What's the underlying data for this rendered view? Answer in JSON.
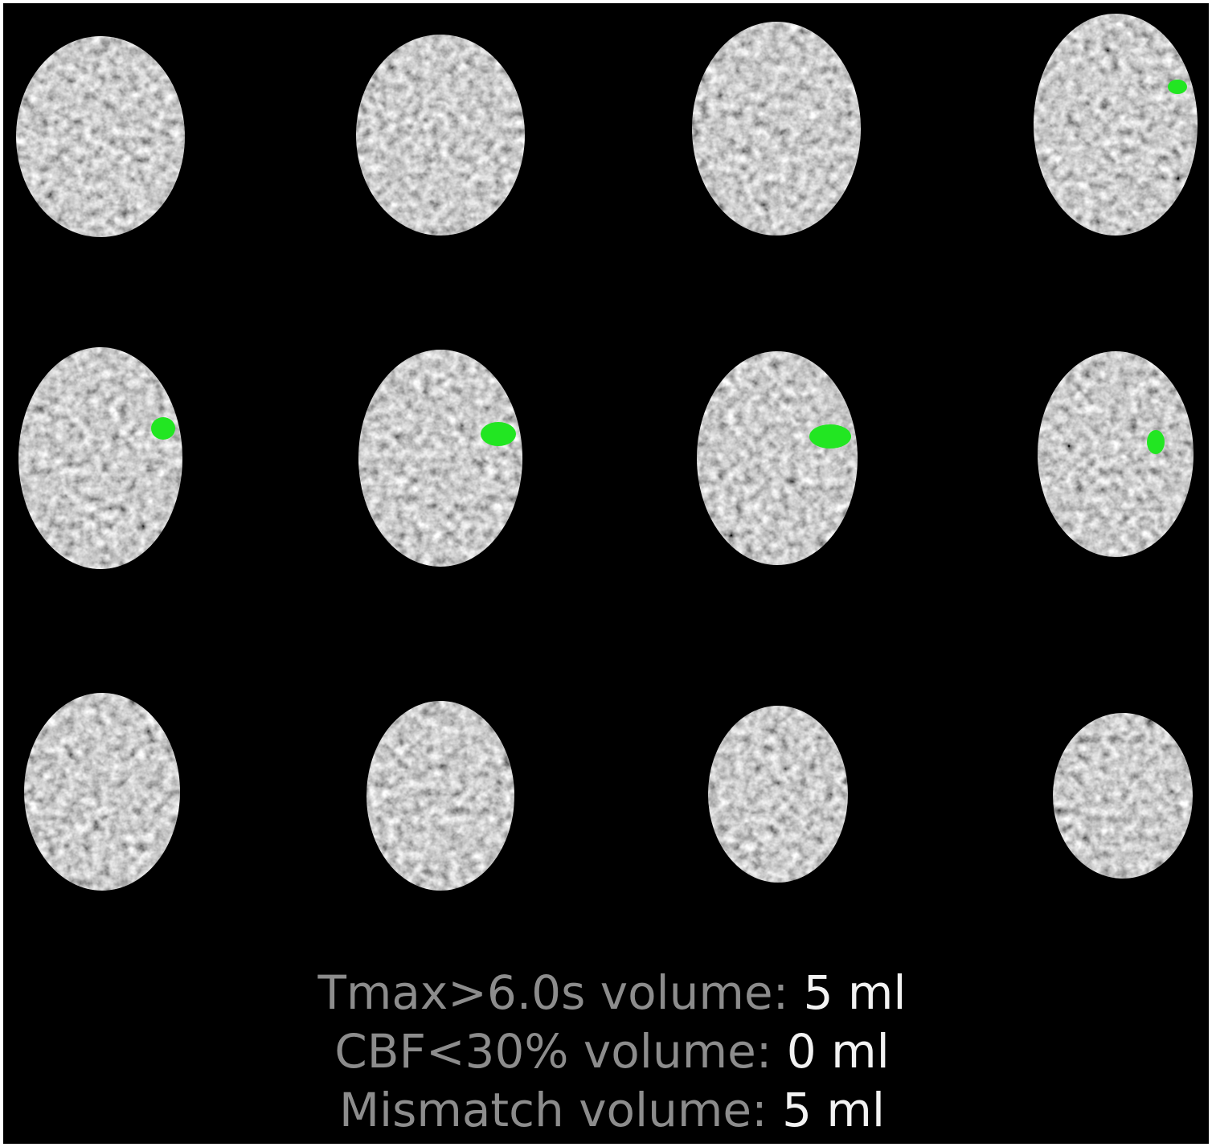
{
  "panel": {
    "slice_count": 12,
    "grid": {
      "rows": 3,
      "columns": 4
    },
    "lesion_slices": [
      4,
      5,
      6,
      7,
      8
    ],
    "colors": {
      "background": "#000000",
      "lesion_overlay": "#22e622",
      "label_text": "#8c8c8c",
      "value_text": "#f2f2f2"
    }
  },
  "summary": {
    "lines": [
      {
        "label": "Tmax>6.0s volume:",
        "value": "5 ml"
      },
      {
        "label": "CBF<30% volume:",
        "value": "0 ml"
      },
      {
        "label": "Mismatch volume:",
        "value": "5 ml"
      }
    ]
  }
}
